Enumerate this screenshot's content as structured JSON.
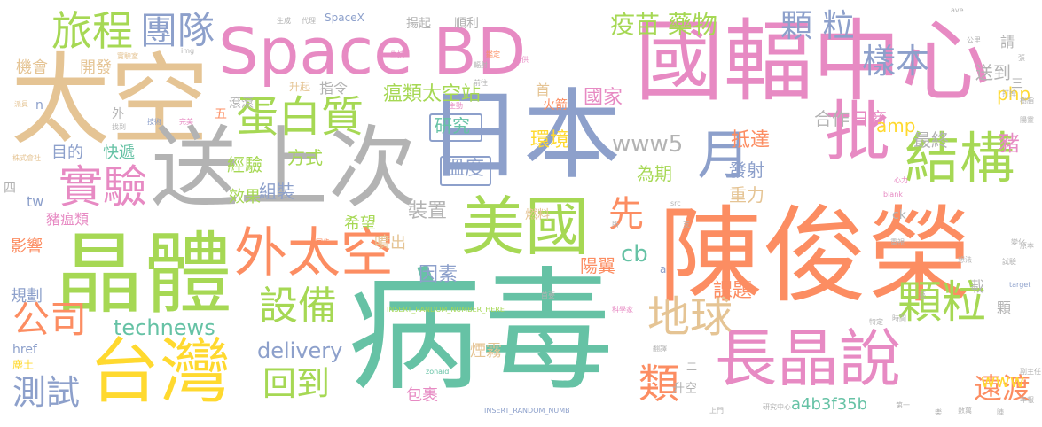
{
  "palette": {
    "green": "#66c2a5",
    "orange": "#fc8d62",
    "blue": "#8da0cb",
    "pink": "#e78ac3",
    "lime": "#a6d854",
    "yellow": "#ffd92f",
    "tan": "#e5c494",
    "gray": "#b3b3b3"
  },
  "words": [
    {
      "text": "病毒",
      "color": "green"
    },
    {
      "text": "陳俊榮",
      "color": "orange"
    },
    {
      "text": "日本",
      "color": "blue"
    },
    {
      "text": "國輻中心",
      "color": "pink"
    },
    {
      "text": "太空",
      "color": "tan"
    },
    {
      "text": "送上次",
      "color": "gray"
    },
    {
      "text": "晶體",
      "color": "lime"
    },
    {
      "text": "Space BD",
      "color": "pink"
    },
    {
      "text": "美國",
      "color": "lime"
    },
    {
      "text": "長晶說",
      "color": "pink"
    },
    {
      "text": "台灣",
      "color": "yellow"
    },
    {
      "text": "外太空",
      "color": "orange"
    },
    {
      "text": "批",
      "color": "pink"
    },
    {
      "text": "月",
      "color": "blue"
    },
    {
      "text": "結構",
      "color": "lime"
    },
    {
      "text": "蛋白質",
      "color": "lime"
    },
    {
      "text": "實驗",
      "color": "pink"
    },
    {
      "text": "旅程",
      "color": "lime"
    },
    {
      "text": "團隊",
      "color": "blue"
    },
    {
      "text": "設備",
      "color": "lime"
    },
    {
      "text": "顆粒",
      "color": "lime"
    },
    {
      "text": "地球",
      "color": "tan"
    },
    {
      "text": "回到",
      "color": "lime"
    },
    {
      "text": "測試",
      "color": "blue"
    },
    {
      "text": "公司",
      "color": "orange"
    },
    {
      "text": "類",
      "color": "orange"
    },
    {
      "text": "先",
      "color": "orange"
    },
    {
      "text": "顆 粒",
      "color": "blue"
    },
    {
      "text": "樣本",
      "color": "blue"
    },
    {
      "text": "疫苗 藥物",
      "color": "lime"
    },
    {
      "text": "遠渡",
      "color": "orange"
    },
    {
      "text": "technews",
      "color": "green"
    },
    {
      "text": "delivery",
      "color": "blue"
    },
    {
      "text": "www5",
      "color": "gray"
    },
    {
      "text": "溫度",
      "color": "blue"
    },
    {
      "text": "研究",
      "color": "green"
    },
    {
      "text": "瘟類太空站",
      "color": "lime"
    },
    {
      "text": "國家",
      "color": "pink"
    },
    {
      "text": "環境",
      "color": "yellow"
    },
    {
      "text": "抵達",
      "color": "orange"
    },
    {
      "text": "發射",
      "color": "blue"
    },
    {
      "text": "重力",
      "color": "tan"
    },
    {
      "text": "為期",
      "color": "lime"
    },
    {
      "text": "經驗",
      "color": "lime"
    },
    {
      "text": "組裝",
      "color": "blue"
    },
    {
      "text": "方式",
      "color": "lime"
    },
    {
      "text": "效果",
      "color": "lime"
    },
    {
      "text": "快遞",
      "color": "green"
    },
    {
      "text": "目的",
      "color": "blue"
    },
    {
      "text": "裝置",
      "color": "gray"
    },
    {
      "text": "因素",
      "color": "blue"
    },
    {
      "text": "陽翼",
      "color": "orange"
    },
    {
      "text": "課題",
      "color": "orange"
    },
    {
      "text": "合作",
      "color": "gray"
    },
    {
      "text": "日商",
      "color": "pink"
    },
    {
      "text": "amp",
      "color": "yellow"
    },
    {
      "text": "最終",
      "color": "gray"
    },
    {
      "text": "豬",
      "color": "pink"
    },
    {
      "text": "php",
      "color": "yellow"
    },
    {
      "text": "送到",
      "color": "gray"
    },
    {
      "text": "www",
      "color": "yellow"
    },
    {
      "text": "cb",
      "color": "green"
    },
    {
      "text": "影響",
      "color": "orange"
    },
    {
      "text": "規劃",
      "color": "blue"
    },
    {
      "text": "豬瘟類",
      "color": "pink"
    },
    {
      "text": "希望",
      "color": "lime"
    },
    {
      "text": "噴出",
      "color": "tan"
    },
    {
      "text": "a4b3f35b",
      "color": "green"
    },
    {
      "text": "包裹",
      "color": "pink"
    },
    {
      "text": "煙霧",
      "color": "tan"
    },
    {
      "text": "升空",
      "color": "gray"
    },
    {
      "text": "機會",
      "color": "tan"
    },
    {
      "text": "開發",
      "color": "tan"
    },
    {
      "text": "滾滾",
      "color": "gray"
    },
    {
      "text": "升起",
      "color": "tan"
    },
    {
      "text": "指令",
      "color": "gray"
    },
    {
      "text": "火箭",
      "color": "orange"
    },
    {
      "text": "順利",
      "color": "gray"
    },
    {
      "text": "揚起",
      "color": "gray"
    },
    {
      "text": "SpaceX",
      "color": "blue"
    },
    {
      "text": "href",
      "color": "blue"
    },
    {
      "text": "塵土",
      "color": "yellow"
    },
    {
      "text": "燃料",
      "color": "tan"
    },
    {
      "text": "首",
      "color": "tan"
    },
    {
      "text": "載",
      "color": "gray"
    },
    {
      "text": "顆",
      "color": "gray"
    },
    {
      "text": "請",
      "color": "gray"
    },
    {
      "text": "tw",
      "color": "blue"
    },
    {
      "text": "ck",
      "color": "gray"
    },
    {
      "text": "n",
      "color": "blue"
    },
    {
      "text": "外",
      "color": "gray"
    },
    {
      "text": "五",
      "color": "orange"
    },
    {
      "text": "四",
      "color": "gray"
    },
    {
      "text": "三",
      "color": "gray"
    },
    {
      "text": "a",
      "color": "blue"
    },
    {
      "text": "二",
      "color": "gray"
    },
    {
      "text": "INSERT_RANDOM_NUMBER_HERE",
      "color": "lime"
    },
    {
      "text": "INSERT_RANDOM_NUMB",
      "color": "blue"
    },
    {
      "text": "zonaid",
      "color": "green"
    },
    {
      "text": "blank",
      "color": "pink"
    },
    {
      "text": "target",
      "color": "blue"
    },
    {
      "text": "src",
      "color": "gray"
    },
    {
      "text": "img",
      "color": "gray"
    },
    {
      "text": "實驗室",
      "color": "tan"
    },
    {
      "text": "株式會社",
      "color": "tan"
    },
    {
      "text": "研究中心",
      "color": "gray"
    },
    {
      "text": "科學家",
      "color": "pink"
    },
    {
      "text": "生成",
      "color": "gray"
    },
    {
      "text": "代理",
      "color": "gray"
    },
    {
      "text": "生技",
      "color": "pink"
    },
    {
      "text": "輻射",
      "color": "gray"
    },
    {
      "text": "鑑定",
      "color": "orange"
    },
    {
      "text": "前往",
      "color": "gray"
    },
    {
      "text": "主動",
      "color": "pink"
    },
    {
      "text": "提供",
      "color": "pink"
    },
    {
      "text": "完美",
      "color": "pink"
    },
    {
      "text": "找到",
      "color": "gray"
    },
    {
      "text": "技術",
      "color": "blue"
    },
    {
      "text": "派員",
      "color": "tan"
    },
    {
      "text": "首要",
      "color": "gray"
    },
    {
      "text": "公里",
      "color": "gray"
    },
    {
      "text": "張",
      "color": "gray"
    },
    {
      "text": "打掉",
      "color": "gray"
    },
    {
      "text": "樹脂",
      "color": "gray"
    },
    {
      "text": "陽靈",
      "color": "gray"
    },
    {
      "text": "心力",
      "color": "pink"
    },
    {
      "text": "同步",
      "color": "orange"
    },
    {
      "text": "重視",
      "color": "gray"
    },
    {
      "text": "變化",
      "color": "gray"
    },
    {
      "text": "副主任",
      "color": "gray"
    },
    {
      "text": "時間",
      "color": "gray"
    },
    {
      "text": "特定",
      "color": "gray"
    },
    {
      "text": "翻譯",
      "color": "gray"
    },
    {
      "text": "上門",
      "color": "gray"
    },
    {
      "text": "第一",
      "color": "gray"
    },
    {
      "text": "年報",
      "color": "gray"
    },
    {
      "text": "原本",
      "color": "gray"
    },
    {
      "text": "想法",
      "color": "gray"
    },
    {
      "text": "試驗",
      "color": "gray"
    },
    {
      "text": "所",
      "color": "gray"
    },
    {
      "text": "支",
      "color": "gray"
    },
    {
      "text": "藝",
      "color": "gray"
    },
    {
      "text": "陣",
      "color": "gray"
    },
    {
      "text": "數萬",
      "color": "gray"
    },
    {
      "text": "樂",
      "color": "gray"
    },
    {
      "text": "ave",
      "color": "gray"
    }
  ]
}
